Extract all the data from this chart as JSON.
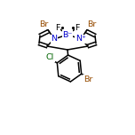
{
  "bg_color": "#ffffff",
  "line_color": "#000000",
  "atom_colors": {
    "N": "#0000cc",
    "B": "#0000cc",
    "Br": "#964B00",
    "Cl": "#006400",
    "F": "#000000",
    "C": "#000000"
  },
  "bond_width": 1.1,
  "figsize": [
    1.52,
    1.52
  ],
  "dpi": 100
}
